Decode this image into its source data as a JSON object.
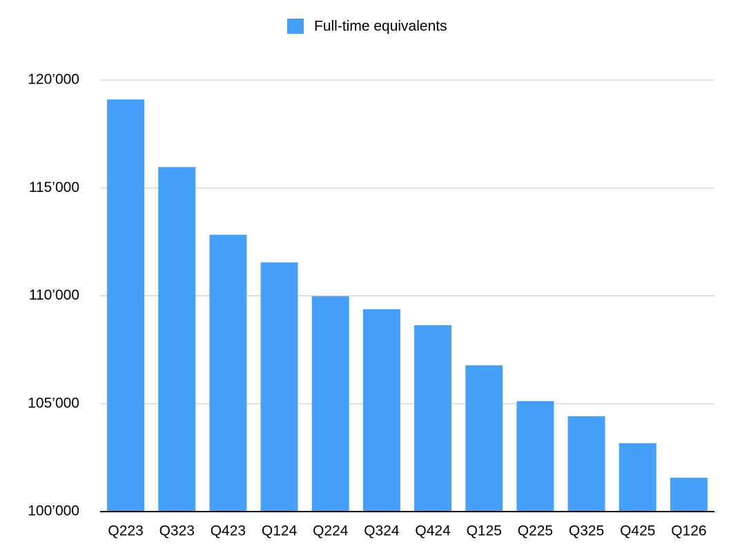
{
  "chart_data": {
    "type": "bar",
    "categories": [
      "Q223",
      "Q323",
      "Q423",
      "Q124",
      "Q224",
      "Q324",
      "Q424",
      "Q125",
      "Q225",
      "Q325",
      "Q425",
      "Q126"
    ],
    "series": [
      {
        "name": "Full-time equivalents",
        "color": "#47a0f7",
        "values": [
          119100,
          115970,
          112830,
          111550,
          109980,
          109380,
          108640,
          106780,
          105120,
          104420,
          103170,
          101570
        ]
      }
    ],
    "ylim": [
      100000,
      120000
    ],
    "yticks": [
      {
        "value": 100000,
        "label": "100’000"
      },
      {
        "value": 105000,
        "label": "105’000"
      },
      {
        "value": 110000,
        "label": "110’000"
      },
      {
        "value": 115000,
        "label": "115’000"
      },
      {
        "value": 120000,
        "label": "120’000"
      }
    ],
    "grid": true,
    "legend": "top"
  }
}
